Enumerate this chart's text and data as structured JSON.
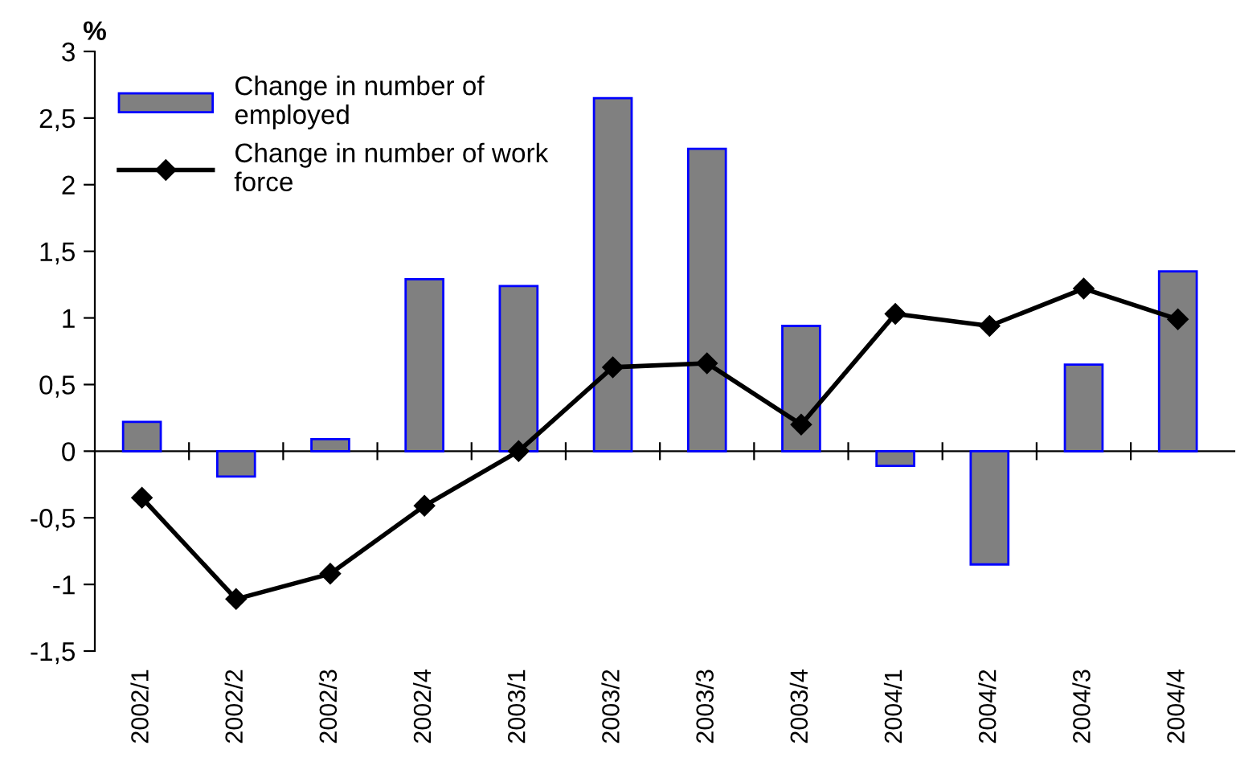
{
  "chart_data": {
    "type": "bar",
    "ylabel": "%",
    "categories": [
      "2002/1",
      "2002/2",
      "2002/3",
      "2002/4",
      "2003/1",
      "2003/2",
      "2003/3",
      "2003/4",
      "2004/1",
      "2004/2",
      "2004/3",
      "2004/4"
    ],
    "series": [
      {
        "name": "Change in number of employed",
        "color": "#808080",
        "values": [
          0.22,
          -0.19,
          0.09,
          1.29,
          1.24,
          2.65,
          2.27,
          0.94,
          -0.11,
          -0.85,
          0.65,
          1.35
        ]
      },
      {
        "name": "Change in number of work force",
        "type": "line",
        "color": "#000000",
        "marker": "diamond",
        "values": [
          -0.35,
          -1.11,
          -0.92,
          -0.41,
          0,
          0.63,
          0.66,
          0.2,
          1.03,
          0.94,
          1.22,
          0.99
        ]
      }
    ],
    "ylim": [
      -1.5,
      3
    ],
    "yticks": [
      {
        "value": -1.5,
        "label": "-1,5"
      },
      {
        "value": -1,
        "label": "-1"
      },
      {
        "value": -0.5,
        "label": "-0,5"
      },
      0,
      {
        "value": 0.5,
        "label": "0,5"
      },
      1,
      {
        "value": 1.5,
        "label": "1,5"
      },
      2,
      {
        "value": 2.5,
        "label": "2,5"
      },
      3
    ],
    "legend": "top left"
  }
}
